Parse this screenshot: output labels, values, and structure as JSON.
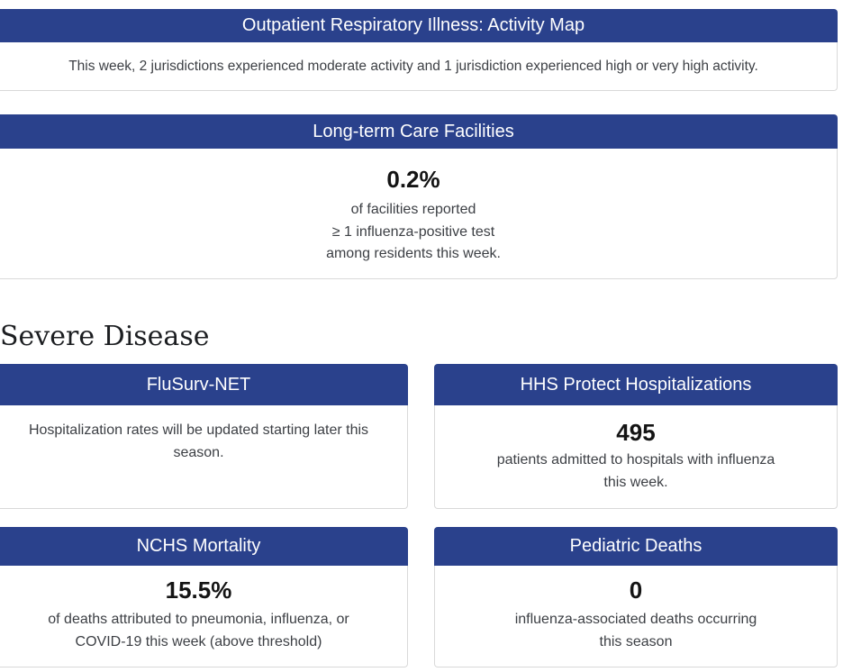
{
  "colors": {
    "header_bg": "#2a418c",
    "header_text": "#ffffff",
    "card_border": "#d9d9d9",
    "body_text": "#3c3f44",
    "value_text": "#141414",
    "heading_text": "#1c1e21",
    "next_section_green": "#4a7145",
    "page_bg": "#ffffff"
  },
  "activity_map": {
    "title": "Outpatient Respiratory Illness: Activity Map",
    "summary": "This week, 2 jurisdictions experienced moderate activity and 1 jurisdiction experienced high or very high activity."
  },
  "ltcf": {
    "title": "Long-term Care Facilities",
    "value": "0.2%",
    "line1": "of facilities reported",
    "line2": "≥ 1 influenza-positive test",
    "line3": "among residents this week."
  },
  "severe": {
    "heading": "Severe Disease",
    "cards": [
      {
        "title": "FluSurv-NET",
        "message": "Hospitalization rates will be updated starting later this\nseason."
      },
      {
        "title": "HHS Protect Hospitalizations",
        "value": "495",
        "description": "patients admitted to hospitals with influenza\nthis week."
      },
      {
        "title": "NCHS Mortality",
        "value": "15.5%",
        "description": "of deaths attributed to pneumonia, influenza, or\nCOVID-19 this week (above threshold)"
      },
      {
        "title": "Pediatric Deaths",
        "value": "0",
        "description": "influenza-associated deaths occurring\nthis season"
      }
    ]
  }
}
